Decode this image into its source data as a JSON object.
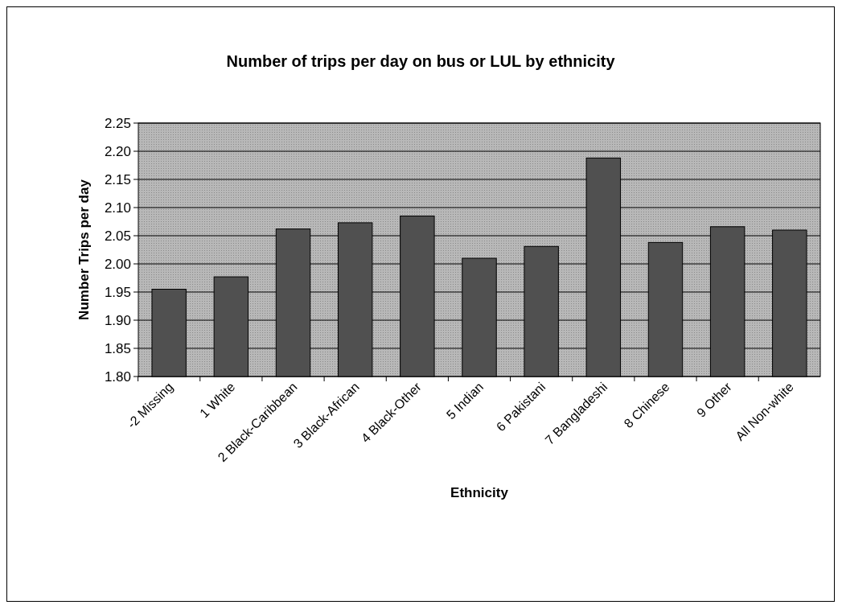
{
  "chart_data": {
    "type": "bar",
    "title": "Number of trips per day on bus or LUL by ethnicity",
    "xlabel": "Ethnicity",
    "ylabel": "Number Trips per day",
    "categories": [
      "-2 Missing",
      "1 White",
      "2 Black-Caribbean",
      "3 Black-African",
      "4 Black-Other",
      "5 Indian",
      "6 Pakistani",
      "7 Bangladeshi",
      "8 Chinese",
      "9 Other",
      "All Non-white"
    ],
    "values": [
      1.955,
      1.977,
      2.062,
      2.073,
      2.085,
      2.01,
      2.031,
      2.188,
      2.038,
      2.066,
      2.06
    ],
    "color": "#505050",
    "ylim": [
      1.8,
      2.25
    ],
    "yticks": [
      {
        "value": 1.8,
        "label": "1.80"
      },
      1.85,
      {
        "value": 1.9,
        "label": "1.90"
      },
      1.95,
      {
        "value": 2.0,
        "label": "2.00"
      },
      2.05,
      {
        "value": 2.1,
        "label": "2.10"
      },
      2.15,
      {
        "value": 2.2,
        "label": "2.20"
      },
      2.25
    ],
    "grid": "y"
  }
}
